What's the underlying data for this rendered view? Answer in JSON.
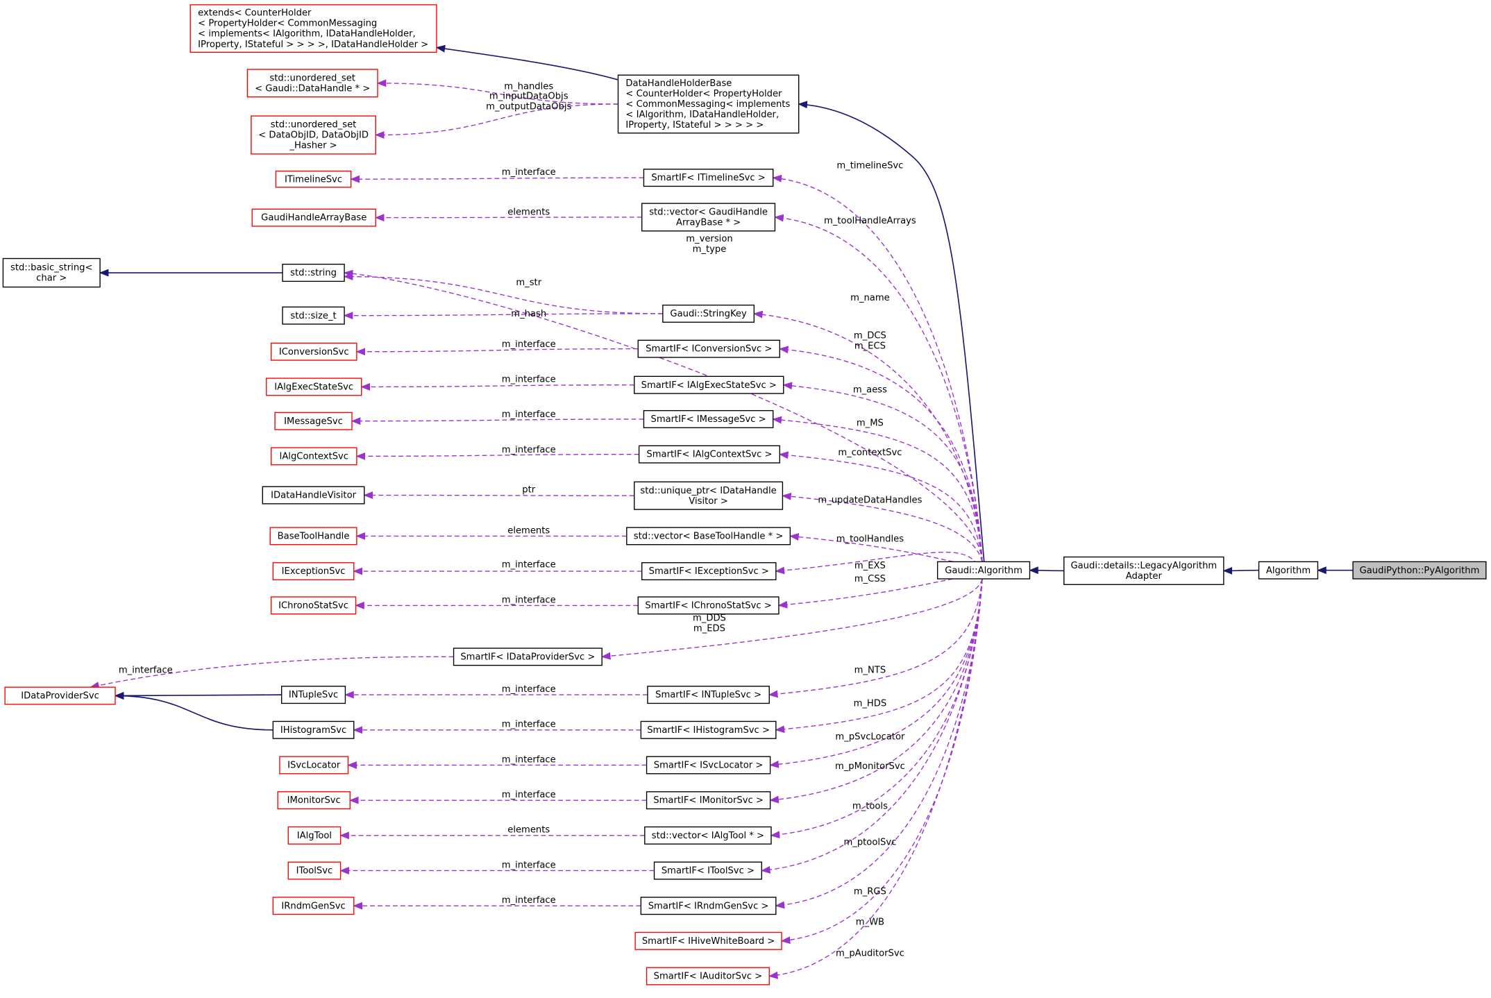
{
  "colors": {
    "inheritance_edge": "#191970",
    "member_edge": "#9a32cd",
    "undocumented_border": "#ff0000",
    "documented_border": "#000000",
    "focus_fill": "#bfbfbf",
    "node_fill": "#ffffff"
  },
  "nodes": {
    "extends": {
      "lines": [
        "extends< CounterHolder",
        "< PropertyHolder< CommonMessaging",
        "< implements< IAlgorithm, IDataHandleHolder,",
        " IProperty, IStateful > > > >, IDataHandleHolder >"
      ],
      "style": "red"
    },
    "dhhb": {
      "lines": [
        "DataHandleHolderBase",
        "< CounterHolder< PropertyHolder",
        "< CommonMessaging< implements",
        "< IAlgorithm, IDataHandleHolder,",
        " IProperty, IStateful > > > > >"
      ],
      "style": "black"
    },
    "uset_handle": {
      "lines": [
        "std::unordered_set",
        "< Gaudi::DataHandle * >"
      ],
      "style": "red"
    },
    "uset_dataobj": {
      "lines": [
        "std::unordered_set",
        "< DataObjID, DataObjID",
        "_Hasher >"
      ],
      "style": "red"
    },
    "itimeline": {
      "lines": [
        "ITimelineSvc"
      ],
      "style": "red"
    },
    "sif_timeline": {
      "lines": [
        "SmartIF< ITimelineSvc >"
      ],
      "style": "black"
    },
    "ghab": {
      "lines": [
        "GaudiHandleArrayBase"
      ],
      "style": "red"
    },
    "vec_ghab": {
      "lines": [
        "std::vector< GaudiHandle",
        "ArrayBase * >"
      ],
      "style": "black"
    },
    "basic_string": {
      "lines": [
        "std::basic_string<",
        "char >"
      ],
      "style": "black"
    },
    "string": {
      "lines": [
        "std::string"
      ],
      "style": "black"
    },
    "size_t": {
      "lines": [
        "std::size_t"
      ],
      "style": "black"
    },
    "stringkey": {
      "lines": [
        "Gaudi::StringKey"
      ],
      "style": "black"
    },
    "iconv": {
      "lines": [
        "IConversionSvc"
      ],
      "style": "red"
    },
    "sif_conv": {
      "lines": [
        "SmartIF< IConversionSvc >"
      ],
      "style": "black"
    },
    "iaes": {
      "lines": [
        "IAlgExecStateSvc"
      ],
      "style": "red"
    },
    "sif_aes": {
      "lines": [
        "SmartIF< IAlgExecStateSvc >"
      ],
      "style": "black"
    },
    "imsg": {
      "lines": [
        "IMessageSvc"
      ],
      "style": "red"
    },
    "sif_msg": {
      "lines": [
        "SmartIF< IMessageSvc >"
      ],
      "style": "black"
    },
    "ictx": {
      "lines": [
        "IAlgContextSvc"
      ],
      "style": "red"
    },
    "sif_ctx": {
      "lines": [
        "SmartIF< IAlgContextSvc >"
      ],
      "style": "black"
    },
    "idhv": {
      "lines": [
        "IDataHandleVisitor"
      ],
      "style": "black"
    },
    "uptr_dhv": {
      "lines": [
        "std::unique_ptr< IDataHandle",
        "Visitor >"
      ],
      "style": "black"
    },
    "btool": {
      "lines": [
        "BaseToolHandle"
      ],
      "style": "red"
    },
    "vec_btool": {
      "lines": [
        "std::vector< BaseToolHandle * >"
      ],
      "style": "black"
    },
    "iexc": {
      "lines": [
        "IExceptionSvc"
      ],
      "style": "red"
    },
    "sif_exc": {
      "lines": [
        "SmartIF< IExceptionSvc >"
      ],
      "style": "black"
    },
    "ichrono": {
      "lines": [
        "IChronoStatSvc"
      ],
      "style": "red"
    },
    "sif_chrono": {
      "lines": [
        "SmartIF< IChronoStatSvc >"
      ],
      "style": "black"
    },
    "sif_dp": {
      "lines": [
        "SmartIF< IDataProviderSvc >"
      ],
      "style": "black"
    },
    "idp": {
      "lines": [
        "IDataProviderSvc"
      ],
      "style": "red"
    },
    "intuple": {
      "lines": [
        "INTupleSvc"
      ],
      "style": "black"
    },
    "sif_ntuple": {
      "lines": [
        "SmartIF< INTupleSvc >"
      ],
      "style": "black"
    },
    "ihisto": {
      "lines": [
        "IHistogramSvc"
      ],
      "style": "black"
    },
    "sif_histo": {
      "lines": [
        "SmartIF< IHistogramSvc >"
      ],
      "style": "black"
    },
    "isvcloc": {
      "lines": [
        "ISvcLocator"
      ],
      "style": "red"
    },
    "sif_svcloc": {
      "lines": [
        "SmartIF< ISvcLocator >"
      ],
      "style": "black"
    },
    "imon": {
      "lines": [
        "IMonitorSvc"
      ],
      "style": "red"
    },
    "sif_mon": {
      "lines": [
        "SmartIF< IMonitorSvc >"
      ],
      "style": "black"
    },
    "ialgtool": {
      "lines": [
        "IAlgTool"
      ],
      "style": "red"
    },
    "vec_algtool": {
      "lines": [
        "std::vector< IAlgTool * >"
      ],
      "style": "black"
    },
    "itoolsvc": {
      "lines": [
        "IToolSvc"
      ],
      "style": "red"
    },
    "sif_toolsvc": {
      "lines": [
        "SmartIF< IToolSvc >"
      ],
      "style": "black"
    },
    "irndm": {
      "lines": [
        "IRndmGenSvc"
      ],
      "style": "red"
    },
    "sif_rndm": {
      "lines": [
        "SmartIF< IRndmGenSvc >"
      ],
      "style": "black"
    },
    "sif_wb": {
      "lines": [
        "SmartIF< IHiveWhiteBoard >"
      ],
      "style": "red"
    },
    "sif_aud": {
      "lines": [
        "SmartIF< IAuditorSvc >"
      ],
      "style": "red"
    },
    "galgo": {
      "lines": [
        "Gaudi::Algorithm"
      ],
      "style": "black"
    },
    "legacy": {
      "lines": [
        "Gaudi::details::LegacyAlgorithm",
        "Adapter"
      ],
      "style": "black"
    },
    "algorithm": {
      "lines": [
        "Algorithm"
      ],
      "style": "black"
    },
    "pyalgo": {
      "lines": [
        "GaudiPython::PyAlgorithm"
      ],
      "style": "focus"
    }
  },
  "edges": [
    {
      "from": "dhhb",
      "to": "extends",
      "kind": "inheritance",
      "label": []
    },
    {
      "from": "galgo",
      "to": "dhhb",
      "kind": "inheritance",
      "label": []
    },
    {
      "from": "legacy",
      "to": "galgo",
      "kind": "inheritance",
      "label": []
    },
    {
      "from": "algorithm",
      "to": "legacy",
      "kind": "inheritance",
      "label": []
    },
    {
      "from": "pyalgo",
      "to": "algorithm",
      "kind": "inheritance",
      "label": []
    },
    {
      "from": "string",
      "to": "basic_string",
      "kind": "inheritance",
      "label": []
    },
    {
      "from": "intuple",
      "to": "idp",
      "kind": "inheritance",
      "label": []
    },
    {
      "from": "ihisto",
      "to": "idp",
      "kind": "inheritance",
      "label": []
    },
    {
      "from": "dhhb",
      "to": "uset_handle",
      "kind": "member",
      "label": [
        "m_handles"
      ]
    },
    {
      "from": "dhhb",
      "to": "uset_dataobj",
      "kind": "member",
      "label": [
        "m_inputDataObjs",
        "m_outputDataObjs"
      ]
    },
    {
      "from": "sif_timeline",
      "to": "itimeline",
      "kind": "member",
      "label": [
        "m_interface"
      ]
    },
    {
      "from": "vec_ghab",
      "to": "ghab",
      "kind": "member",
      "label": [
        "elements"
      ]
    },
    {
      "from": "stringkey",
      "to": "string",
      "kind": "member",
      "label": [
        "m_str"
      ]
    },
    {
      "from": "stringkey",
      "to": "size_t",
      "kind": "member",
      "label": [
        "m_hash"
      ]
    },
    {
      "from": "sif_conv",
      "to": "iconv",
      "kind": "member",
      "label": [
        "m_interface"
      ]
    },
    {
      "from": "sif_aes",
      "to": "iaes",
      "kind": "member",
      "label": [
        "m_interface"
      ]
    },
    {
      "from": "sif_msg",
      "to": "imsg",
      "kind": "member",
      "label": [
        "m_interface"
      ]
    },
    {
      "from": "sif_ctx",
      "to": "ictx",
      "kind": "member",
      "label": [
        "m_interface"
      ]
    },
    {
      "from": "uptr_dhv",
      "to": "idhv",
      "kind": "member",
      "label": [
        "ptr"
      ]
    },
    {
      "from": "vec_btool",
      "to": "btool",
      "kind": "member",
      "label": [
        "elements"
      ]
    },
    {
      "from": "sif_exc",
      "to": "iexc",
      "kind": "member",
      "label": [
        "m_interface"
      ]
    },
    {
      "from": "sif_chrono",
      "to": "ichrono",
      "kind": "member",
      "label": [
        "m_interface"
      ]
    },
    {
      "from": "sif_dp",
      "to": "idp",
      "kind": "member",
      "label": [
        "m_interface"
      ]
    },
    {
      "from": "sif_ntuple",
      "to": "intuple",
      "kind": "member",
      "label": [
        "m_interface"
      ]
    },
    {
      "from": "sif_histo",
      "to": "ihisto",
      "kind": "member",
      "label": [
        "m_interface"
      ]
    },
    {
      "from": "sif_svcloc",
      "to": "isvcloc",
      "kind": "member",
      "label": [
        "m_interface"
      ]
    },
    {
      "from": "sif_mon",
      "to": "imon",
      "kind": "member",
      "label": [
        "m_interface"
      ]
    },
    {
      "from": "vec_algtool",
      "to": "ialgtool",
      "kind": "member",
      "label": [
        "elements"
      ]
    },
    {
      "from": "sif_toolsvc",
      "to": "itoolsvc",
      "kind": "member",
      "label": [
        "m_interface"
      ]
    },
    {
      "from": "sif_rndm",
      "to": "irndm",
      "kind": "member",
      "label": [
        "m_interface"
      ]
    },
    {
      "from": "galgo",
      "to": "sif_timeline",
      "kind": "member",
      "label": [
        "m_timelineSvc"
      ]
    },
    {
      "from": "galgo",
      "to": "vec_ghab",
      "kind": "member",
      "label": [
        "m_toolHandleArrays"
      ]
    },
    {
      "from": "galgo",
      "to": "string",
      "kind": "member",
      "label": [
        "m_version",
        "m_type"
      ]
    },
    {
      "from": "galgo",
      "to": "stringkey",
      "kind": "member",
      "label": [
        "m_name"
      ]
    },
    {
      "from": "galgo",
      "to": "sif_conv",
      "kind": "member",
      "label": [
        "m_DCS",
        "m_ECS"
      ]
    },
    {
      "from": "galgo",
      "to": "sif_aes",
      "kind": "member",
      "label": [
        "m_aess"
      ]
    },
    {
      "from": "galgo",
      "to": "sif_msg",
      "kind": "member",
      "label": [
        "m_MS"
      ]
    },
    {
      "from": "galgo",
      "to": "sif_ctx",
      "kind": "member",
      "label": [
        "m_contextSvc"
      ]
    },
    {
      "from": "galgo",
      "to": "uptr_dhv",
      "kind": "member",
      "label": [
        "m_updateDataHandles"
      ]
    },
    {
      "from": "galgo",
      "to": "vec_btool",
      "kind": "member",
      "label": [
        "m_toolHandles"
      ]
    },
    {
      "from": "galgo",
      "to": "sif_exc",
      "kind": "member",
      "label": [
        "m_EXS"
      ]
    },
    {
      "from": "galgo",
      "to": "sif_chrono",
      "kind": "member",
      "label": [
        "m_CSS"
      ]
    },
    {
      "from": "galgo",
      "to": "sif_dp",
      "kind": "member",
      "label": [
        "m_DDS",
        "m_EDS"
      ]
    },
    {
      "from": "galgo",
      "to": "sif_ntuple",
      "kind": "member",
      "label": [
        "m_NTS"
      ]
    },
    {
      "from": "galgo",
      "to": "sif_histo",
      "kind": "member",
      "label": [
        "m_HDS"
      ]
    },
    {
      "from": "galgo",
      "to": "sif_svcloc",
      "kind": "member",
      "label": [
        "m_pSvcLocator"
      ]
    },
    {
      "from": "galgo",
      "to": "sif_mon",
      "kind": "member",
      "label": [
        "m_pMonitorSvc"
      ]
    },
    {
      "from": "galgo",
      "to": "vec_algtool",
      "kind": "member",
      "label": [
        "m_tools"
      ]
    },
    {
      "from": "galgo",
      "to": "sif_toolsvc",
      "kind": "member",
      "label": [
        "m_ptoolSvc"
      ]
    },
    {
      "from": "galgo",
      "to": "sif_rndm",
      "kind": "member",
      "label": [
        "m_RGS"
      ]
    },
    {
      "from": "galgo",
      "to": "sif_wb",
      "kind": "member",
      "label": [
        "m_WB"
      ]
    },
    {
      "from": "galgo",
      "to": "sif_aud",
      "kind": "member",
      "label": [
        "m_pAuditorSvc"
      ]
    }
  ]
}
